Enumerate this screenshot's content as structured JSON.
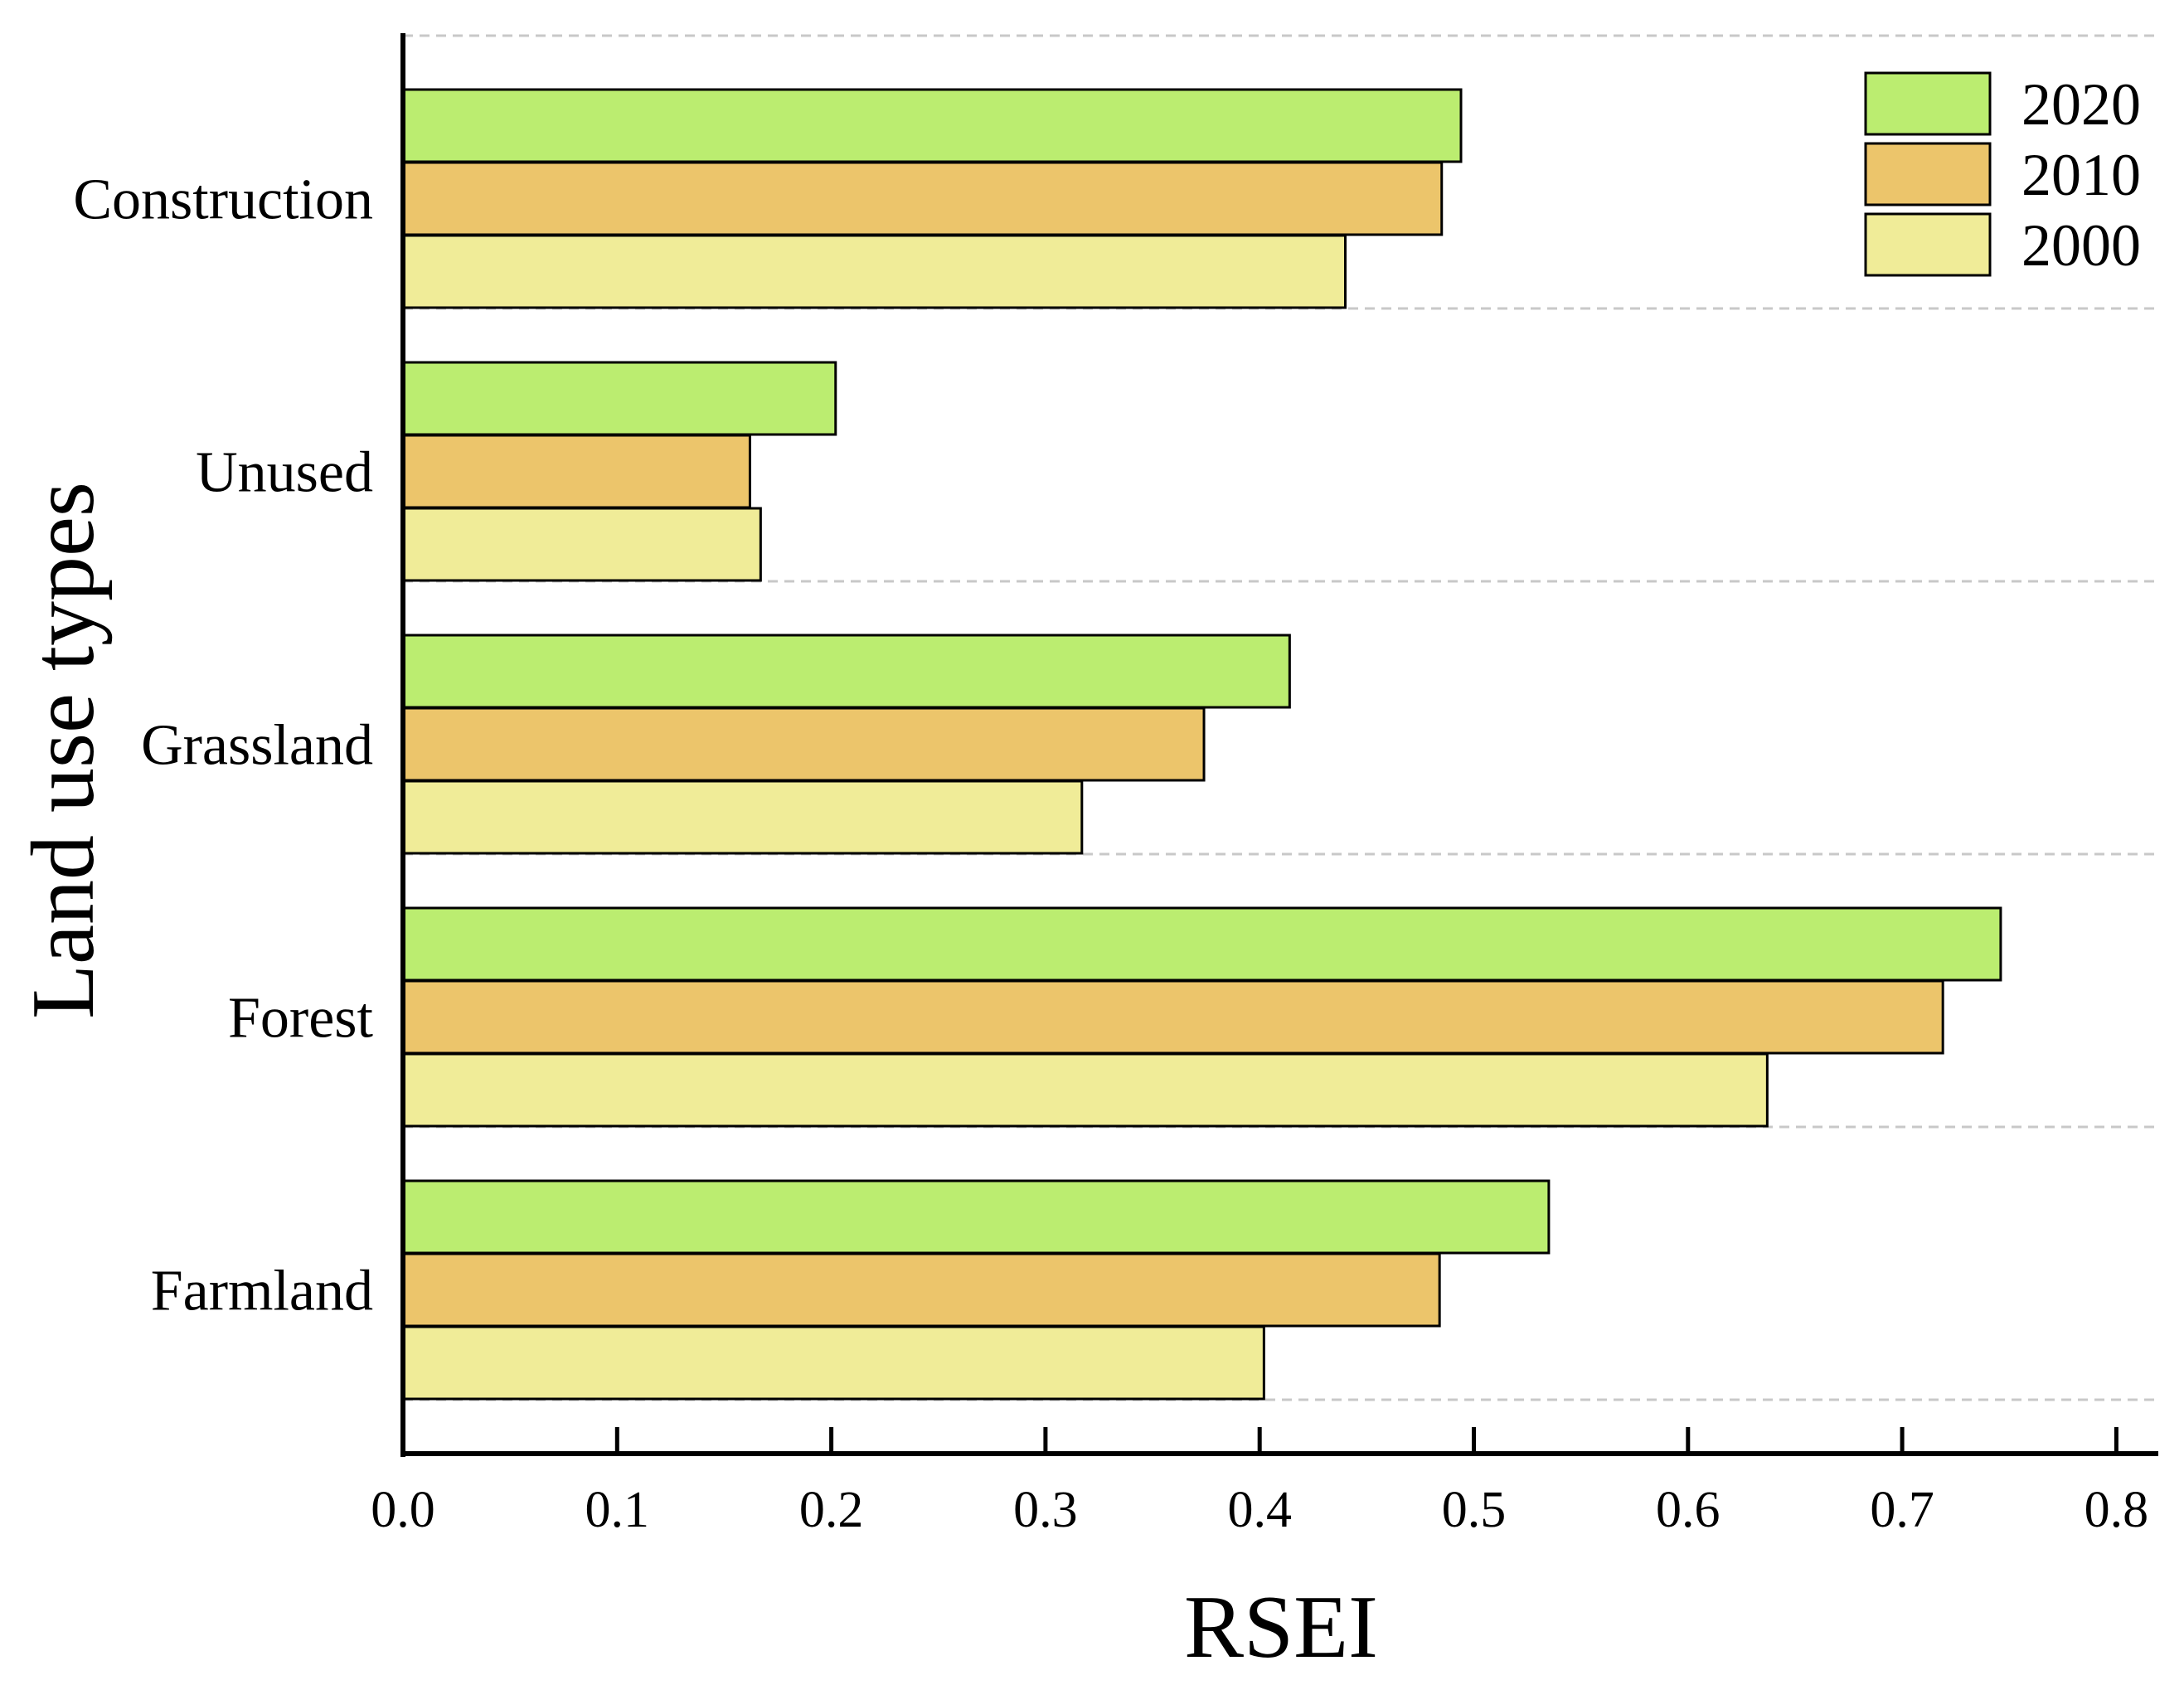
{
  "chart_data": {
    "type": "bar",
    "orientation": "horizontal",
    "title": "",
    "xlabel": "RSEI",
    "ylabel": "Land use types",
    "xlim": [
      0,
      0.8
    ],
    "x_ticks": [
      "0.0",
      "0.1",
      "0.2",
      "0.3",
      "0.4",
      "0.5",
      "0.6",
      "0.7",
      "0.8"
    ],
    "categories": [
      "Construction",
      "Unused",
      "Grassland",
      "Forest",
      "Farmland"
    ],
    "series": [
      {
        "name": "2020",
        "color": "#bbed70",
        "values": [
          0.494,
          0.202,
          0.414,
          0.746,
          0.535
        ]
      },
      {
        "name": "2010",
        "color": "#ecc56b",
        "values": [
          0.485,
          0.162,
          0.374,
          0.719,
          0.484
        ]
      },
      {
        "name": "2000",
        "color": "#f0ec98",
        "values": [
          0.44,
          0.167,
          0.317,
          0.637,
          0.402
        ]
      }
    ],
    "legend_position": "top-right",
    "grid": "dashed horizontal separators"
  }
}
